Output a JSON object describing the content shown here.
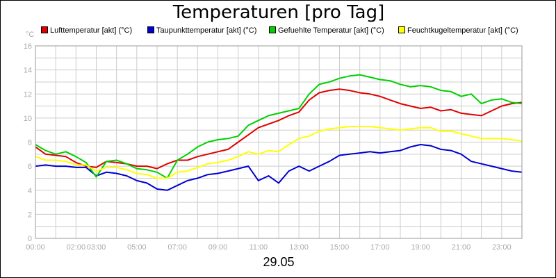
{
  "title": "Temperaturen [pro Tag]",
  "y_unit": "°C",
  "date_label": "29.05",
  "chart_data": {
    "type": "line",
    "title": "Temperaturen [pro Tag]",
    "ylabel": "°C",
    "xlabel": "29.05",
    "xlim": [
      0,
      24
    ],
    "ylim": [
      0,
      16
    ],
    "grid": true,
    "legend_position": "top",
    "x_ticks": [
      "00:00",
      "02:00",
      "03:00",
      "05:00",
      "07:00",
      "09:00",
      "11:00",
      "13:00",
      "15:00",
      "17:00",
      "19:00",
      "21:00",
      "23:00"
    ],
    "x_tick_values": [
      0,
      2,
      3,
      5,
      7,
      9,
      11,
      13,
      15,
      17,
      19,
      21,
      23
    ],
    "y_ticks": [
      "0",
      "2",
      "4",
      "6",
      "8",
      "10",
      "12",
      "14",
      "16"
    ],
    "x": [
      0,
      0.5,
      1,
      1.5,
      2,
      2.5,
      3,
      3.5,
      4,
      4.5,
      5,
      5.5,
      6,
      6.5,
      7,
      7.5,
      8,
      8.5,
      9,
      9.5,
      10,
      10.5,
      11,
      11.5,
      12,
      12.5,
      13,
      13.5,
      14,
      14.5,
      15,
      15.5,
      16,
      16.5,
      17,
      17.5,
      18,
      18.5,
      19,
      19.5,
      20,
      20.5,
      21,
      21.5,
      22,
      22.5,
      23,
      23.5,
      24
    ],
    "series": [
      {
        "name": "Lufttemperatur [akt] (°C)",
        "color": "#e00000",
        "values": [
          7.6,
          7.0,
          6.9,
          6.8,
          6.3,
          6.0,
          5.9,
          6.4,
          6.3,
          6.2,
          6.0,
          6.0,
          5.8,
          6.2,
          6.5,
          6.5,
          6.8,
          7.0,
          7.2,
          7.4,
          8.0,
          8.6,
          9.2,
          9.5,
          9.8,
          10.2,
          10.5,
          11.5,
          12.1,
          12.3,
          12.4,
          12.3,
          12.1,
          12.0,
          11.8,
          11.5,
          11.2,
          11.0,
          10.8,
          10.9,
          10.6,
          10.7,
          10.4,
          10.3,
          10.2,
          10.6,
          11.0,
          11.2,
          11.3
        ]
      },
      {
        "name": "Taupunkttemperatur [akt] (°C)",
        "color": "#0000d0",
        "values": [
          6.0,
          6.1,
          6.0,
          6.0,
          5.9,
          5.9,
          5.2,
          5.5,
          5.4,
          5.2,
          4.8,
          4.6,
          4.1,
          4.0,
          4.4,
          4.8,
          5.0,
          5.3,
          5.4,
          5.6,
          5.8,
          6.0,
          4.8,
          5.2,
          4.6,
          5.6,
          6.0,
          5.6,
          6.0,
          6.4,
          6.9,
          7.0,
          7.1,
          7.2,
          7.1,
          7.2,
          7.3,
          7.6,
          7.8,
          7.7,
          7.4,
          7.3,
          7.0,
          6.4,
          6.2,
          6.0,
          5.8,
          5.6,
          5.5
        ]
      },
      {
        "name": "Gefuehlte Temperatur [akt] (°C)",
        "color": "#00d000",
        "values": [
          7.8,
          7.3,
          7.0,
          7.2,
          6.8,
          6.3,
          5.1,
          6.4,
          6.5,
          6.2,
          5.8,
          5.7,
          5.5,
          5.0,
          6.5,
          7.0,
          7.6,
          8.0,
          8.2,
          8.3,
          8.5,
          9.4,
          9.8,
          10.2,
          10.4,
          10.6,
          10.8,
          12.0,
          12.8,
          13.0,
          13.3,
          13.5,
          13.6,
          13.4,
          13.2,
          13.1,
          12.8,
          12.6,
          12.7,
          12.6,
          12.3,
          12.2,
          11.8,
          12.0,
          11.2,
          11.5,
          11.6,
          11.3,
          11.2
        ]
      },
      {
        "name": "Feuchtkugeltemperatur [akt] (°C)",
        "color": "#ffff00",
        "values": [
          6.8,
          6.5,
          6.5,
          6.4,
          6.1,
          6.1,
          5.6,
          5.9,
          5.9,
          5.7,
          5.4,
          5.3,
          5.0,
          5.0,
          5.5,
          5.6,
          5.9,
          6.2,
          6.3,
          6.5,
          6.8,
          7.2,
          7.0,
          7.3,
          7.2,
          7.8,
          8.3,
          8.5,
          8.9,
          9.1,
          9.2,
          9.3,
          9.3,
          9.3,
          9.2,
          9.1,
          9.0,
          9.1,
          9.2,
          9.2,
          8.9,
          8.9,
          8.7,
          8.5,
          8.3,
          8.3,
          8.3,
          8.2,
          8.1
        ]
      }
    ]
  }
}
